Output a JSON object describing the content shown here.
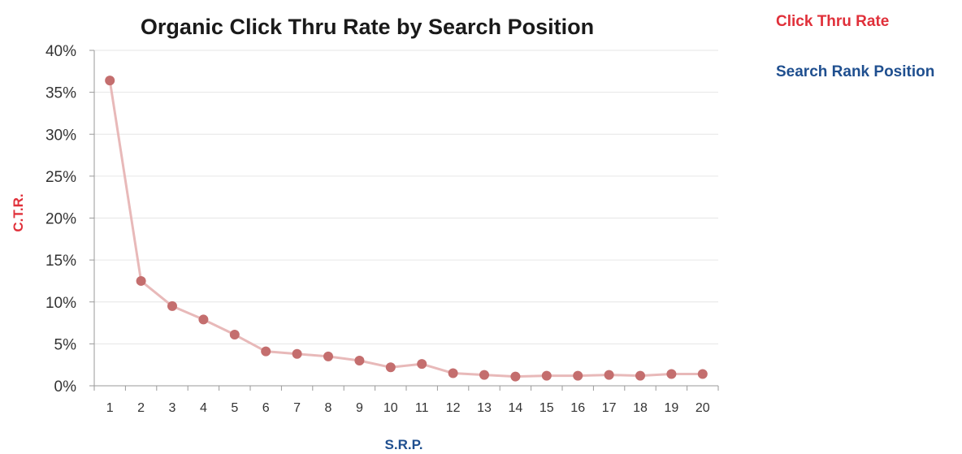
{
  "chart_data": {
    "type": "line",
    "title": "Organic Click Thru Rate by Search Position",
    "xlabel": "S.R.P.",
    "ylabel": "C.T.R.",
    "ylim": [
      0,
      40
    ],
    "yticks": [
      "0%",
      "5%",
      "10%",
      "15%",
      "20%",
      "25%",
      "30%",
      "35%",
      "40%"
    ],
    "categories": [
      "1",
      "2",
      "3",
      "4",
      "5",
      "6",
      "7",
      "8",
      "9",
      "10",
      "11",
      "12",
      "13",
      "14",
      "15",
      "16",
      "17",
      "18",
      "19",
      "20"
    ],
    "series": [
      {
        "values": [
          36.4,
          12.5,
          9.5,
          7.9,
          6.1,
          4.1,
          3.8,
          3.5,
          3.0,
          2.2,
          2.6,
          1.5,
          1.3,
          1.1,
          1.2,
          1.2,
          1.3,
          1.2,
          1.4,
          1.4
        ]
      }
    ],
    "grid": true,
    "legend_position": "top-right",
    "legend_entries": [
      "Click Thru Rate",
      "Search Rank Position"
    ],
    "colors": {
      "line": "#e8b9b9",
      "marker": "#c46e6e",
      "ylabel": "#e0303a",
      "xlabel": "#1f4f8f",
      "legend_ctr": "#e0303a",
      "legend_srp": "#1f4f8f"
    }
  }
}
